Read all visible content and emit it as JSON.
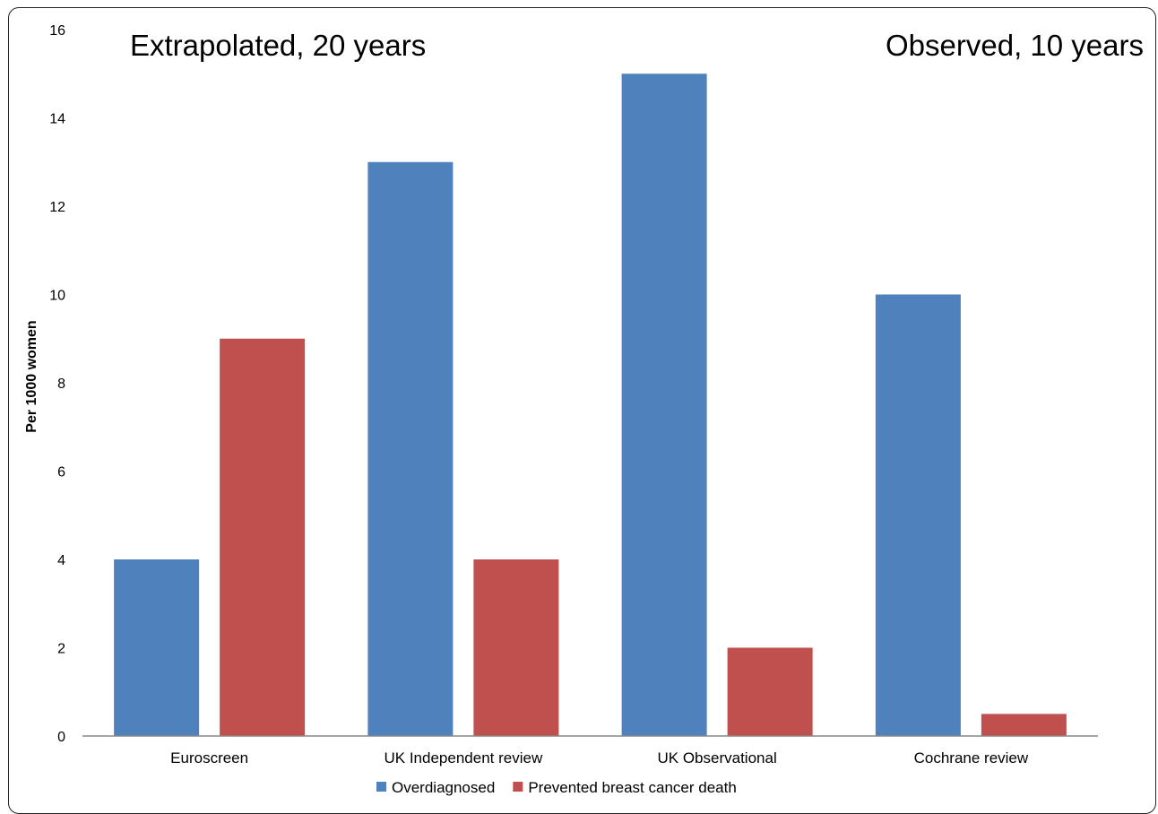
{
  "chart_data": {
    "type": "bar",
    "categories": [
      "Euroscreen",
      "UK Independent review",
      "UK Observational",
      "Cochrane review"
    ],
    "series": [
      {
        "name": "Overdiagnosed",
        "color": "#4F81BD",
        "values": [
          4,
          13,
          15,
          10
        ]
      },
      {
        "name": "Prevented breast cancer death",
        "color": "#C0504D",
        "values": [
          9,
          4,
          2,
          0.5
        ]
      }
    ],
    "ylabel": "Per 1000 women",
    "xlabel": "",
    "ylim": [
      0,
      16
    ],
    "yticks": [
      0,
      2,
      4,
      6,
      8,
      10,
      12,
      14,
      16
    ],
    "grid": false,
    "legend": "bottom",
    "annotations": [
      {
        "text": "Extrapolated, 20 years",
        "position": "top-left"
      },
      {
        "text": "Observed, 10 years",
        "position": "top-right"
      }
    ]
  }
}
